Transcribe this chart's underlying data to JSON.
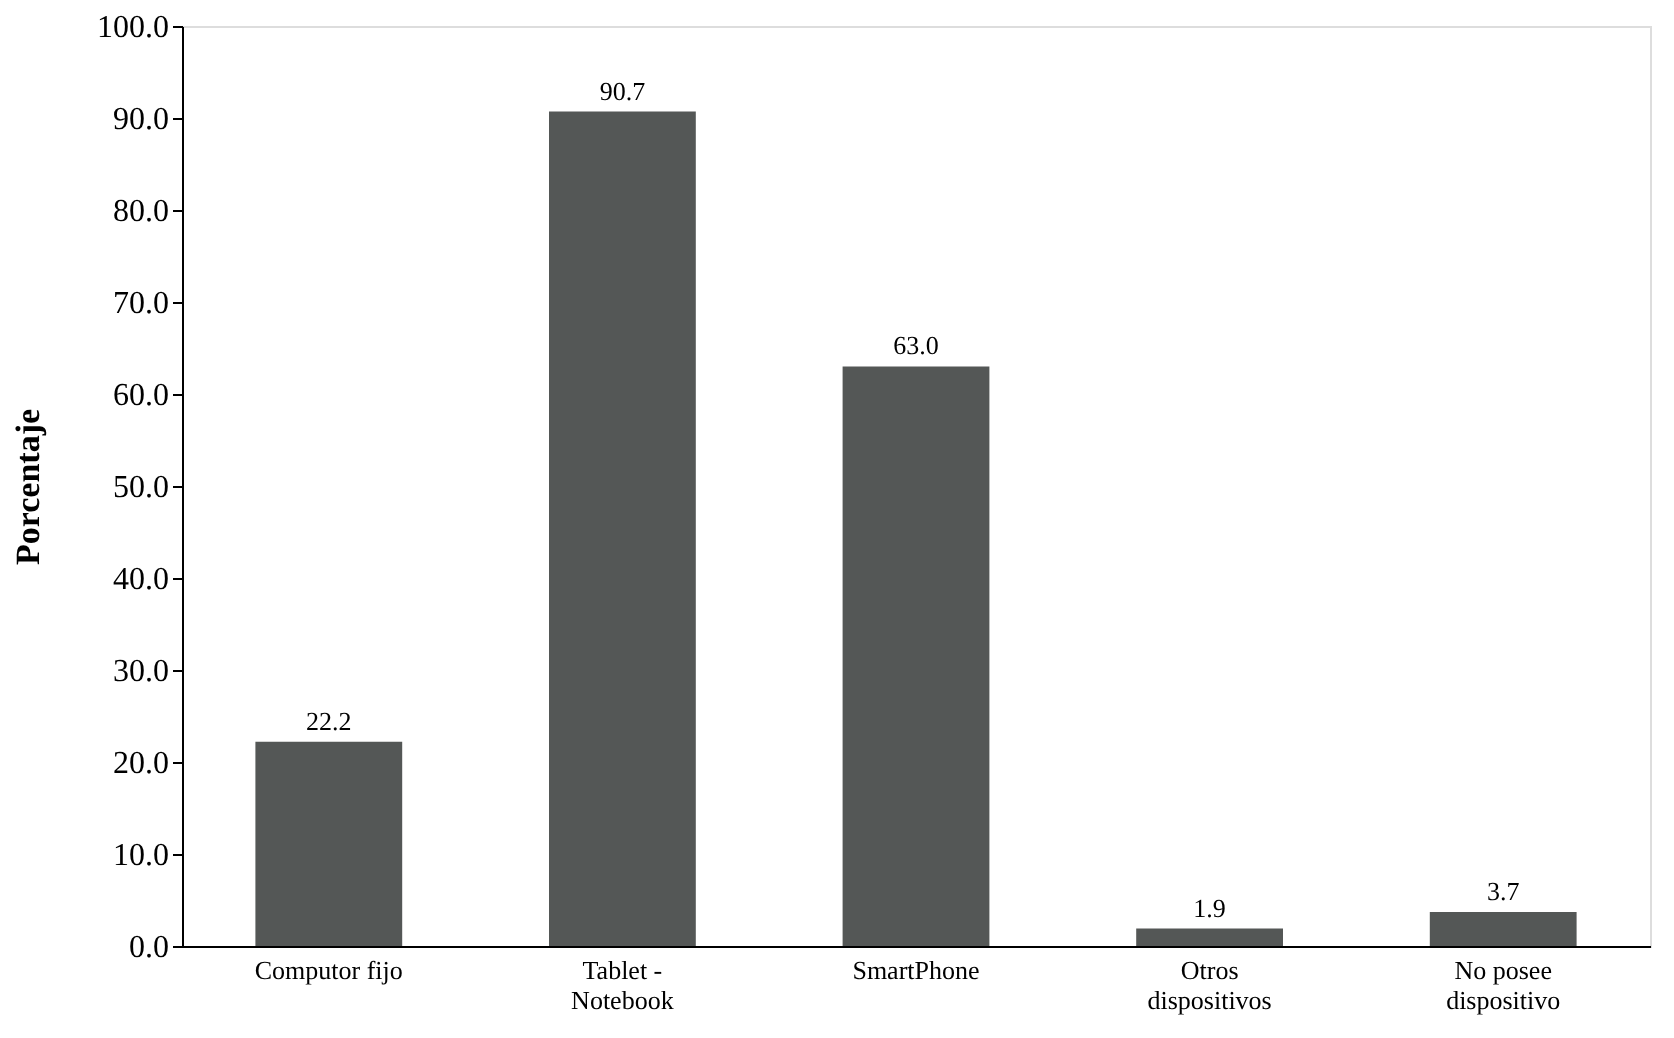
{
  "chart_data": {
    "type": "bar",
    "ylabel": "Porcentaje",
    "categories": [
      "Computor fijo",
      "Tablet -\nNotebook",
      "SmartPhone",
      "Otros\ndispositivos",
      "No posee\ndispositivo"
    ],
    "values": [
      22.2,
      90.7,
      63.0,
      1.9,
      3.7
    ],
    "value_labels": [
      "22.2",
      "90.7",
      "63.0",
      "1.9",
      "3.7"
    ],
    "color": "#545756",
    "ylim": [
      0,
      100
    ],
    "yticks": [
      {
        "value": 0,
        "label": "0.0"
      },
      {
        "value": 10,
        "label": "10.0"
      },
      {
        "value": 20,
        "label": "20.0"
      },
      {
        "value": 30,
        "label": "30.0"
      },
      {
        "value": 40,
        "label": "40.0"
      },
      {
        "value": 50,
        "label": "50.0"
      },
      {
        "value": 60,
        "label": "60.0"
      },
      {
        "value": 70,
        "label": "70.0"
      },
      {
        "value": 80,
        "label": "80.0"
      },
      {
        "value": 90,
        "label": "90.0"
      },
      {
        "value": 100,
        "label": "100.0"
      }
    ],
    "grid": false
  }
}
